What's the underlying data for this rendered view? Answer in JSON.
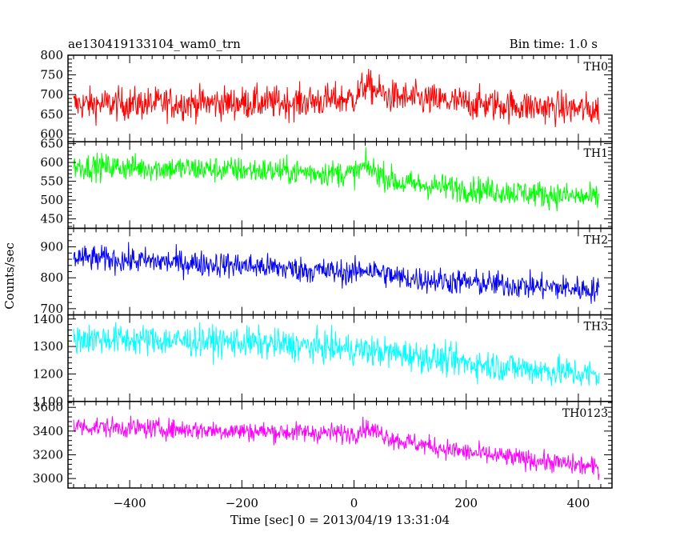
{
  "chart_data": {
    "type": "line",
    "title": "ae130419133104_wam0_trn",
    "subtitle": "Bin time: 1.0 s",
    "xlabel": "Time [sec] 0 = 2013/04/19 13:31:04",
    "ylabel": "Counts/sec",
    "xlim": [
      -510,
      460
    ],
    "xticks": [
      -400,
      -200,
      0,
      200,
      400
    ],
    "x_range": [
      -500,
      437
    ],
    "grid": false,
    "panels": [
      {
        "name": "TH0",
        "color": "#ff0000",
        "ylim": [
          580,
          800
        ],
        "yticks": [
          600,
          650,
          700,
          750,
          800
        ],
        "trend": [
          [
            -500,
            675
          ],
          [
            -300,
            678
          ],
          [
            -100,
            680
          ],
          [
            0,
            690
          ],
          [
            20,
            725
          ],
          [
            60,
            695
          ],
          [
            200,
            678
          ],
          [
            437,
            660
          ]
        ],
        "noise": 30
      },
      {
        "name": "TH1",
        "color": "#00ff00",
        "ylim": [
          425,
          655
        ],
        "yticks": [
          450,
          500,
          550,
          600,
          650
        ],
        "trend": [
          [
            -500,
            590
          ],
          [
            -200,
            580
          ],
          [
            0,
            570
          ],
          [
            20,
            590
          ],
          [
            80,
            545
          ],
          [
            200,
            530
          ],
          [
            437,
            505
          ]
        ],
        "noise": 25
      },
      {
        "name": "TH2",
        "color": "#0000ff",
        "ylim": [
          680,
          960
        ],
        "yticks": [
          700,
          800,
          900
        ],
        "trend": [
          [
            -500,
            865
          ],
          [
            -200,
            840
          ],
          [
            0,
            815
          ],
          [
            20,
            830
          ],
          [
            80,
            800
          ],
          [
            200,
            785
          ],
          [
            437,
            760
          ]
        ],
        "noise": 30
      },
      {
        "name": "TH3",
        "color": "#00ffff",
        "ylim": [
          1100,
          1415
        ],
        "yticks": [
          1100,
          1200,
          1300,
          1400
        ],
        "trend": [
          [
            -500,
            1330
          ],
          [
            -200,
            1315
          ],
          [
            0,
            1290
          ],
          [
            100,
            1270
          ],
          [
            200,
            1240
          ],
          [
            437,
            1195
          ]
        ],
        "noise": 40
      },
      {
        "name": "TH0123",
        "color": "#ff00ff",
        "ylim": [
          2920,
          3650
        ],
        "yticks": [
          3000,
          3200,
          3400,
          3600
        ],
        "trend": [
          [
            -500,
            3440
          ],
          [
            -200,
            3400
          ],
          [
            0,
            3380
          ],
          [
            20,
            3430
          ],
          [
            80,
            3320
          ],
          [
            200,
            3220
          ],
          [
            437,
            3090
          ]
        ],
        "noise": 60
      }
    ]
  }
}
